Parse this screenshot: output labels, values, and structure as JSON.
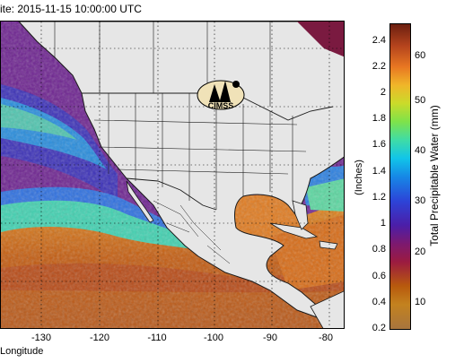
{
  "title": "ite: 2015-11-15 10:00:00 UTC",
  "map": {
    "x_label": "Longitude",
    "x_ticks": [
      "-130",
      "-120",
      "-110",
      "-100",
      "-90",
      "-80"
    ],
    "logo_text": "CIMSS"
  },
  "colorbar": {
    "left_unit": "(Inches)",
    "right_label": "Total Precipitable Water (mm)",
    "inch_ticks": [
      "2.4",
      "2.2",
      "2",
      "1.8",
      "1.6",
      "1.4",
      "1.2",
      "1",
      "0.8",
      "0.6",
      "0.4",
      "0.2"
    ],
    "mm_ticks": [
      "60",
      "50",
      "40",
      "30",
      "20",
      "10"
    ]
  },
  "colors": {
    "land": "#e6e6e6",
    "border": "#1a1a1a",
    "dry": "#7a1a55",
    "moist": "#c86a10"
  }
}
